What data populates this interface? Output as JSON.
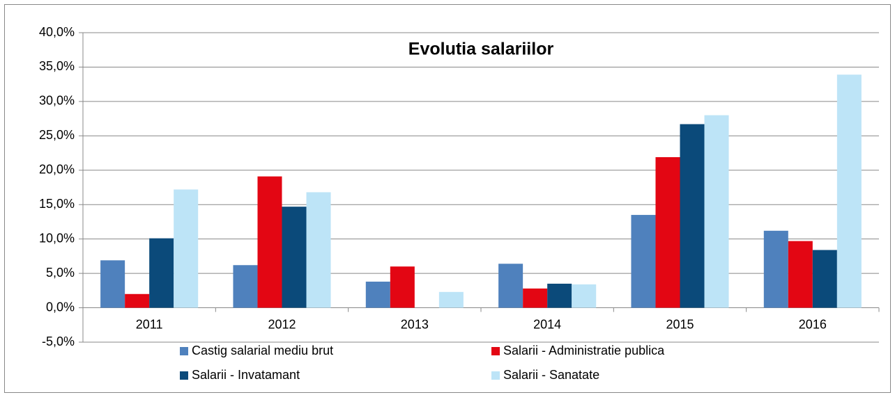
{
  "chart_data": {
    "type": "bar",
    "title": "Evolutia salariilor",
    "categories": [
      "2011",
      "2012",
      "2013",
      "2014",
      "2015",
      "2016"
    ],
    "series": [
      {
        "name": "Castig salarial mediu brut",
        "color": "#4f81bd",
        "values": [
          6.9,
          6.2,
          3.8,
          6.4,
          13.5,
          11.2
        ]
      },
      {
        "name": "Salarii - Administratie publica",
        "color": "#e30613",
        "values": [
          2.0,
          19.1,
          6.0,
          2.8,
          21.9,
          9.7
        ]
      },
      {
        "name": "Salarii - Invatamant",
        "color": "#0b4a7a",
        "values": [
          10.1,
          14.7,
          0.0,
          3.5,
          26.7,
          8.4
        ]
      },
      {
        "name": "Salarii - Sanatate",
        "color": "#bde4f7",
        "values": [
          17.2,
          16.8,
          2.3,
          3.4,
          28.0,
          33.9
        ]
      }
    ],
    "ylim": [
      -5,
      40
    ],
    "yticks": [
      {
        "value": -5,
        "label": "-5,0%"
      },
      {
        "value": 0,
        "label": "0,0%"
      },
      {
        "value": 5,
        "label": "5,0%"
      },
      {
        "value": 10,
        "label": "10,0%"
      },
      {
        "value": 15,
        "label": "15,0%"
      },
      {
        "value": 20,
        "label": "20,0%"
      },
      {
        "value": 25,
        "label": "25,0%"
      },
      {
        "value": 30,
        "label": "30,0%"
      },
      {
        "value": 35,
        "label": "35,0%"
      },
      {
        "value": 40,
        "label": "40,0%"
      }
    ],
    "grid": true,
    "legend": "bottom"
  }
}
